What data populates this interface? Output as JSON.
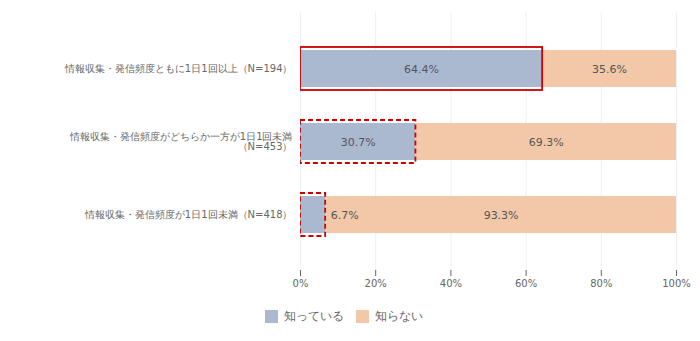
{
  "chart_data": {
    "type": "bar",
    "orientation": "horizontal",
    "stacked": true,
    "data_labels": true,
    "grid": true,
    "legend": "bottom",
    "categories": [
      "情報収集・発信頻度ともに1日1回以上（N=194）",
      "情報収集・発信頻度がどちらか一方が1日1回未満\n（N=453）",
      "情報収集・発信頻度が1日1回未満（N=418）"
    ],
    "series": [
      {
        "name": "知っている",
        "color": "#aab9d0",
        "values": [
          64.4,
          30.7,
          6.7
        ],
        "value_labels": [
          "64.4%",
          "30.7%",
          "6.7%"
        ]
      },
      {
        "name": "知らない",
        "color": "#f2c8a8",
        "values": [
          35.6,
          69.3,
          93.3
        ],
        "value_labels": [
          "35.6%",
          "69.3%",
          "93.3%"
        ]
      }
    ],
    "xlim": [
      0,
      100
    ],
    "xticks": [
      {
        "value": 0,
        "label": "0%"
      },
      {
        "value": 20,
        "label": "20%"
      },
      {
        "value": 40,
        "label": "40%"
      },
      {
        "value": 60,
        "label": "60%"
      },
      {
        "value": 80,
        "label": "80%"
      },
      {
        "value": 100,
        "label": "100%"
      }
    ]
  }
}
